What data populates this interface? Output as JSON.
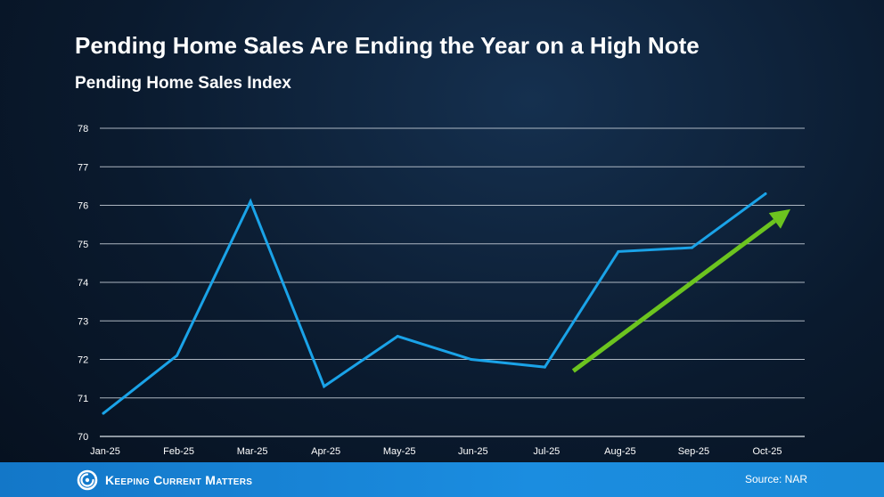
{
  "header": {
    "title": "Pending Home Sales Are Ending the Year on a High Note",
    "subtitle": "Pending Home Sales Index"
  },
  "footer": {
    "brand": "Keeping Current Matters",
    "source": "Source: NAR",
    "brand_icon": "kcm-logo-icon"
  },
  "colors": {
    "line": "#1aa3e8",
    "arrow": "#6cc41f",
    "grid": "#c9d1da",
    "axis_text": "#ffffff",
    "footer_bg": "#1a86d6"
  },
  "chart_data": {
    "type": "line",
    "categories": [
      "Jan-25",
      "Feb-25",
      "Mar-25",
      "Apr-25",
      "May-25",
      "Jun-25",
      "Jul-25",
      "Aug-25",
      "Sep-25",
      "Oct-25"
    ],
    "series": [
      {
        "values": [
          70.6,
          72.1,
          76.1,
          71.3,
          72.6,
          72.0,
          71.8,
          74.8,
          74.9,
          76.3
        ]
      }
    ],
    "yticks": [
      70,
      71,
      72,
      73,
      74,
      75,
      76,
      77,
      78
    ],
    "ylim": [
      70,
      78
    ],
    "grid": true,
    "annotations": [
      {
        "type": "trend-arrow",
        "from": {
          "x": "Jul-25",
          "y": 71.7
        },
        "to": {
          "x": "Oct-25",
          "y": 75.9
        }
      }
    ]
  }
}
